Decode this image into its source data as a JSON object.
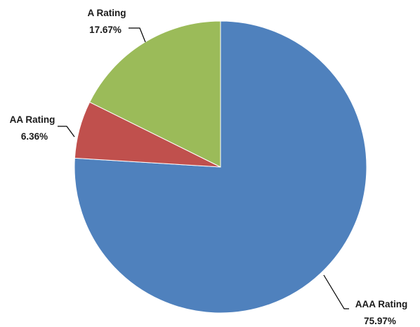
{
  "chart_data": {
    "type": "pie",
    "slices": [
      {
        "name": "AAA Rating",
        "value": 75.97,
        "label": "75.97%",
        "color": "#4F81BD"
      },
      {
        "name": "AA Rating",
        "value": 6.36,
        "label": "6.36%",
        "color": "#C0504D"
      },
      {
        "name": "A Rating",
        "value": 17.67,
        "label": "17.67%",
        "color": "#9BBB59"
      }
    ],
    "start_angle": "12 o'clock",
    "direction": "clockwise",
    "legend": "none"
  }
}
